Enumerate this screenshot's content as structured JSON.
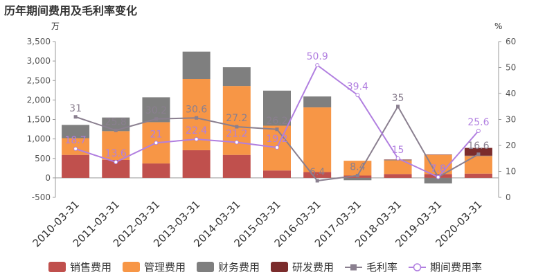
{
  "chart_data": {
    "type": "bar",
    "title": "历年期间费用及毛利率变化",
    "left_unit": "万",
    "right_unit": "%",
    "categories": [
      "2010-03-31",
      "2011-03-31",
      "2012-03-31",
      "2013-03-31",
      "2014-03-31",
      "2015-03-31",
      "2016-03-31",
      "2017-03-31",
      "2018-03-31",
      "2019-03-31",
      "2020-03-31"
    ],
    "ylim_left": [
      -500,
      3500
    ],
    "yticks_left": [
      "-500",
      "0",
      "500",
      "1,000",
      "1,500",
      "2,000",
      "2,500",
      "3,000",
      "3,500"
    ],
    "ylim_right": [
      0,
      60
    ],
    "yticks_right": [
      "0",
      "10",
      "20",
      "30",
      "40",
      "50",
      "60"
    ],
    "bar_series": [
      {
        "name": "销售费用",
        "color": "#c0504d",
        "values": [
          590,
          460,
          370,
          710,
          590,
          190,
          150,
          60,
          100,
          100,
          110
        ]
      },
      {
        "name": "管理费用",
        "color": "#f79646",
        "values": [
          430,
          740,
          1060,
          1830,
          1770,
          1150,
          1660,
          380,
          350,
          490,
          450
        ]
      },
      {
        "name": "财务费用",
        "color": "#7f7f7f",
        "values": [
          340,
          350,
          640,
          700,
          480,
          900,
          280,
          -60,
          10,
          -140,
          10
        ]
      },
      {
        "name": "研发费用",
        "color": "#7b2c2c",
        "values": [
          0,
          0,
          0,
          0,
          0,
          0,
          0,
          0,
          10,
          10,
          200
        ]
      }
    ],
    "line_series": [
      {
        "name": "毛利率",
        "color": "#8a7f8f",
        "values": [
          31,
          25.8,
          30.2,
          30.6,
          27.2,
          26.2,
          6.4,
          8.4,
          35,
          7.8,
          16.6
        ],
        "labels": [
          "31",
          "25.8",
          "30.2",
          "30.6",
          "27.2",
          "26.2",
          "6.4",
          "8.4",
          "35",
          "7.8",
          "16.6"
        ]
      },
      {
        "name": "期间费用率",
        "color": "#b17fe0",
        "values": [
          18.7,
          13.6,
          21,
          22.4,
          21.2,
          19.2,
          50.9,
          39.4,
          15,
          7.8,
          25.6
        ],
        "labels": [
          "18.7",
          "13.6",
          "21",
          "22.4",
          "21.2",
          "19.2",
          "50.9",
          "39.4",
          "15",
          "7.8",
          "25.6"
        ]
      }
    ],
    "legend_position": "bottom",
    "grid": false
  }
}
